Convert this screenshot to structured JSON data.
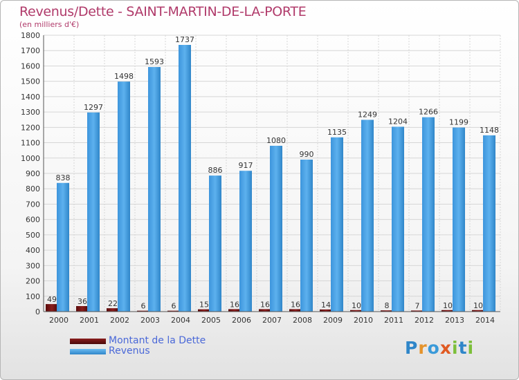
{
  "chart_data": {
    "type": "bar",
    "title": "Revenus/Dette - SAINT-MARTIN-DE-LA-PORTE",
    "subtitle": "(en milliers d'€)",
    "categories": [
      "2000",
      "2001",
      "2002",
      "2003",
      "2004",
      "2005",
      "2006",
      "2007",
      "2008",
      "2009",
      "2010",
      "2011",
      "2012",
      "2013",
      "2014"
    ],
    "series": [
      {
        "name": "Montant de la Dette",
        "color": "#6b0f0f",
        "values": [
          49,
          36,
          22,
          6,
          6,
          15,
          16,
          16,
          16,
          14,
          10,
          8,
          7,
          10,
          10
        ]
      },
      {
        "name": "Revenus",
        "color": "#4aa3e8",
        "values": [
          838,
          1297,
          1498,
          1593,
          1737,
          886,
          917,
          1080,
          990,
          1135,
          1249,
          1204,
          1266,
          1199,
          1148
        ]
      }
    ],
    "ylim": [
      0,
      1800
    ],
    "yticks": [
      0,
      100,
      200,
      300,
      400,
      500,
      600,
      700,
      800,
      900,
      1000,
      1100,
      1200,
      1300,
      1400,
      1500,
      1600,
      1700,
      1800
    ],
    "grid": true,
    "legend": "bottom-left"
  },
  "logo": {
    "letters": [
      "P",
      "r",
      "o",
      "x",
      "i",
      "t",
      "i"
    ]
  }
}
